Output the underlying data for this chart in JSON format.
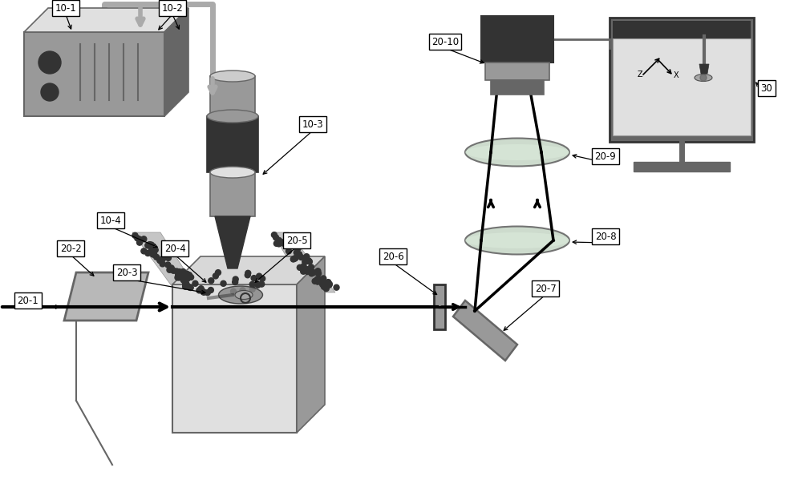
{
  "bg": "#ffffff",
  "gl": "#cccccc",
  "gll": "#e0e0e0",
  "gm": "#999999",
  "gd": "#666666",
  "gdk": "#333333",
  "blk": "#000000",
  "cable_color": "#aaaaaa"
}
